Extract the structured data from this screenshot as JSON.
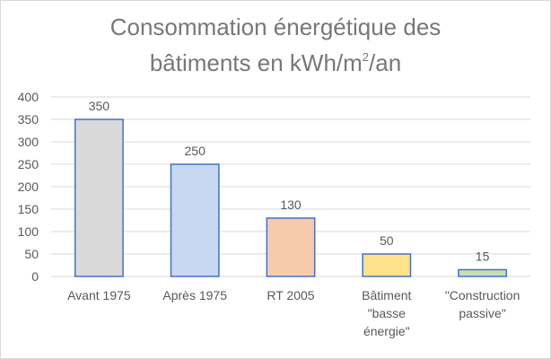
{
  "chart_data": {
    "type": "bar",
    "title_line1": "Consommation énergétique des",
    "title_line2_pre": "bâtiments en kWh/m",
    "title_sup": "2",
    "title_line2_post": "/an",
    "categories": [
      [
        "Avant 1975"
      ],
      [
        "Après 1975"
      ],
      [
        "RT 2005"
      ],
      [
        "Bâtiment",
        "\"basse",
        "énergie\""
      ],
      [
        "\"Construction",
        "passive\""
      ]
    ],
    "values": [
      350,
      250,
      130,
      50,
      15
    ],
    "data_labels": [
      "350",
      "250",
      "130",
      "50",
      "15"
    ],
    "y_ticks": [
      "0",
      "50",
      "100",
      "150",
      "200",
      "250",
      "300",
      "350",
      "400"
    ],
    "ylim": [
      0,
      400
    ],
    "grid": true,
    "legend": "none",
    "colors": {
      "fills": [
        "#d9d9d9",
        "#c8d7f2",
        "#f7c9ad",
        "#ffe28a",
        "#c6e0b4"
      ],
      "strokes": [
        "#4472c4",
        "#4472c4",
        "#4472c4",
        "#4472c4",
        "#4472c4"
      ],
      "grid": "#d9d9d9",
      "text": "#595959"
    }
  }
}
